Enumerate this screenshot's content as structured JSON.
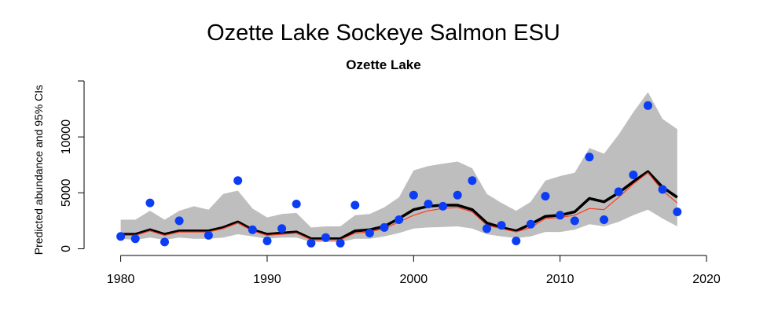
{
  "chart_data": {
    "type": "line",
    "title": "Ozette Lake Sockeye Salmon ESU",
    "subtitle": "Ozette Lake",
    "xlabel": "",
    "ylabel": "Predicted abundance and 95% CIs",
    "xlim": [
      1977.5,
      2021.5
    ],
    "ylim": [
      -600,
      15000
    ],
    "xticks": [
      1980,
      1990,
      2000,
      2010,
      2020
    ],
    "yticks": [
      0,
      5000,
      10000,
      15000
    ],
    "ytick_labels": [
      "0",
      "5000",
      "10000",
      ""
    ],
    "grid": false,
    "x": [
      1980,
      1981,
      1982,
      1983,
      1984,
      1985,
      1986,
      1987,
      1988,
      1989,
      1990,
      1991,
      1992,
      1993,
      1994,
      1995,
      1996,
      1997,
      1998,
      1999,
      2000,
      2001,
      2002,
      2003,
      2004,
      2005,
      2006,
      2007,
      2008,
      2009,
      2010,
      2011,
      2012,
      2013,
      2014,
      2015,
      2016,
      2017,
      2018
    ],
    "series": [
      {
        "role": "ci_band",
        "color": "#bebebe",
        "lower": [
          900,
          800,
          1000,
          800,
          1000,
          900,
          900,
          1000,
          1300,
          1100,
          900,
          1000,
          1000,
          600,
          600,
          600,
          900,
          900,
          1100,
          1400,
          1800,
          1900,
          1950,
          2000,
          1800,
          1300,
          1100,
          950,
          1100,
          1500,
          1500,
          1700,
          2200,
          2000,
          2400,
          3000,
          3500,
          2700,
          2000
        ],
        "upper": [
          2600,
          2600,
          3400,
          2600,
          3400,
          3800,
          3500,
          4900,
          5200,
          3600,
          2800,
          3100,
          3200,
          1900,
          2000,
          2000,
          3000,
          3100,
          3700,
          4600,
          7000,
          7400,
          7600,
          7800,
          7200,
          4900,
          4100,
          3400,
          4200,
          6100,
          6500,
          6800,
          9000,
          8500,
          10200,
          12200,
          14000,
          11600,
          10700
        ]
      },
      {
        "role": "median",
        "color": "#000000",
        "values": [
          1300,
          1300,
          1700,
          1300,
          1600,
          1600,
          1600,
          1900,
          2400,
          1700,
          1300,
          1400,
          1500,
          900,
          900,
          900,
          1600,
          1700,
          2000,
          2700,
          3500,
          3800,
          3900,
          3900,
          3500,
          2300,
          1900,
          1600,
          2200,
          2900,
          3000,
          3300,
          4500,
          4200,
          5000,
          6000,
          6900,
          5500,
          4600
        ]
      },
      {
        "role": "mean",
        "color": "#ff3b1f",
        "values": [
          1200,
          1200,
          1600,
          1200,
          1500,
          1500,
          1500,
          1800,
          2300,
          1600,
          1200,
          1300,
          1400,
          800,
          800,
          800,
          1400,
          1500,
          1800,
          2400,
          3000,
          3400,
          3600,
          3700,
          3300,
          2100,
          1800,
          1500,
          1900,
          2700,
          2800,
          3000,
          3600,
          3500,
          4600,
          5800,
          6800,
          5200,
          4100
        ]
      },
      {
        "role": "observed",
        "color": "#0b3df5",
        "values": [
          1100,
          900,
          4100,
          600,
          2500,
          null,
          1200,
          null,
          6100,
          1700,
          700,
          1800,
          4000,
          500,
          1000,
          500,
          3900,
          1400,
          1900,
          2600,
          4800,
          4000,
          3800,
          4800,
          6100,
          1800,
          2100,
          700,
          2200,
          4700,
          3000,
          2500,
          8200,
          2600,
          5100,
          6600,
          12800,
          5300,
          3300
        ]
      }
    ]
  }
}
